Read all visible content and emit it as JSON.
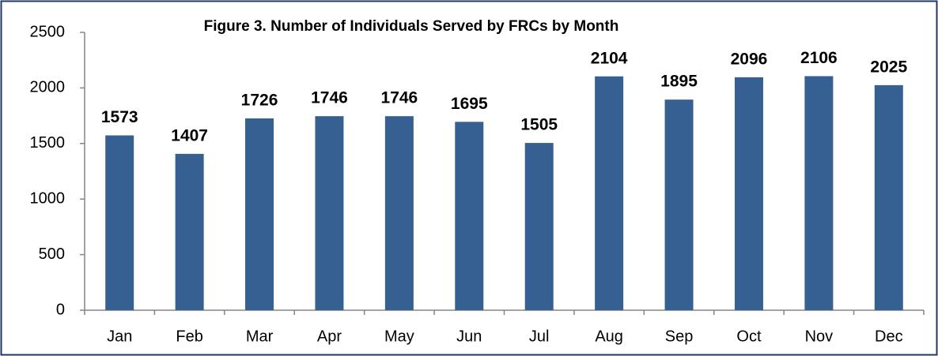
{
  "chart_data": {
    "type": "bar",
    "title": "Figure 3. Number of Individuals Served by FRCs by Month",
    "categories": [
      "Jan",
      "Feb",
      "Mar",
      "Apr",
      "May",
      "Jun",
      "Jul",
      "Aug",
      "Sep",
      "Oct",
      "Nov",
      "Dec"
    ],
    "values": [
      1573,
      1407,
      1726,
      1746,
      1746,
      1695,
      1505,
      2104,
      1895,
      2096,
      2106,
      2025
    ],
    "color": "#376092",
    "ylim": [
      0,
      2500
    ],
    "yticks": [
      0,
      500,
      1000,
      1500,
      2000,
      2500
    ],
    "grid": false
  }
}
